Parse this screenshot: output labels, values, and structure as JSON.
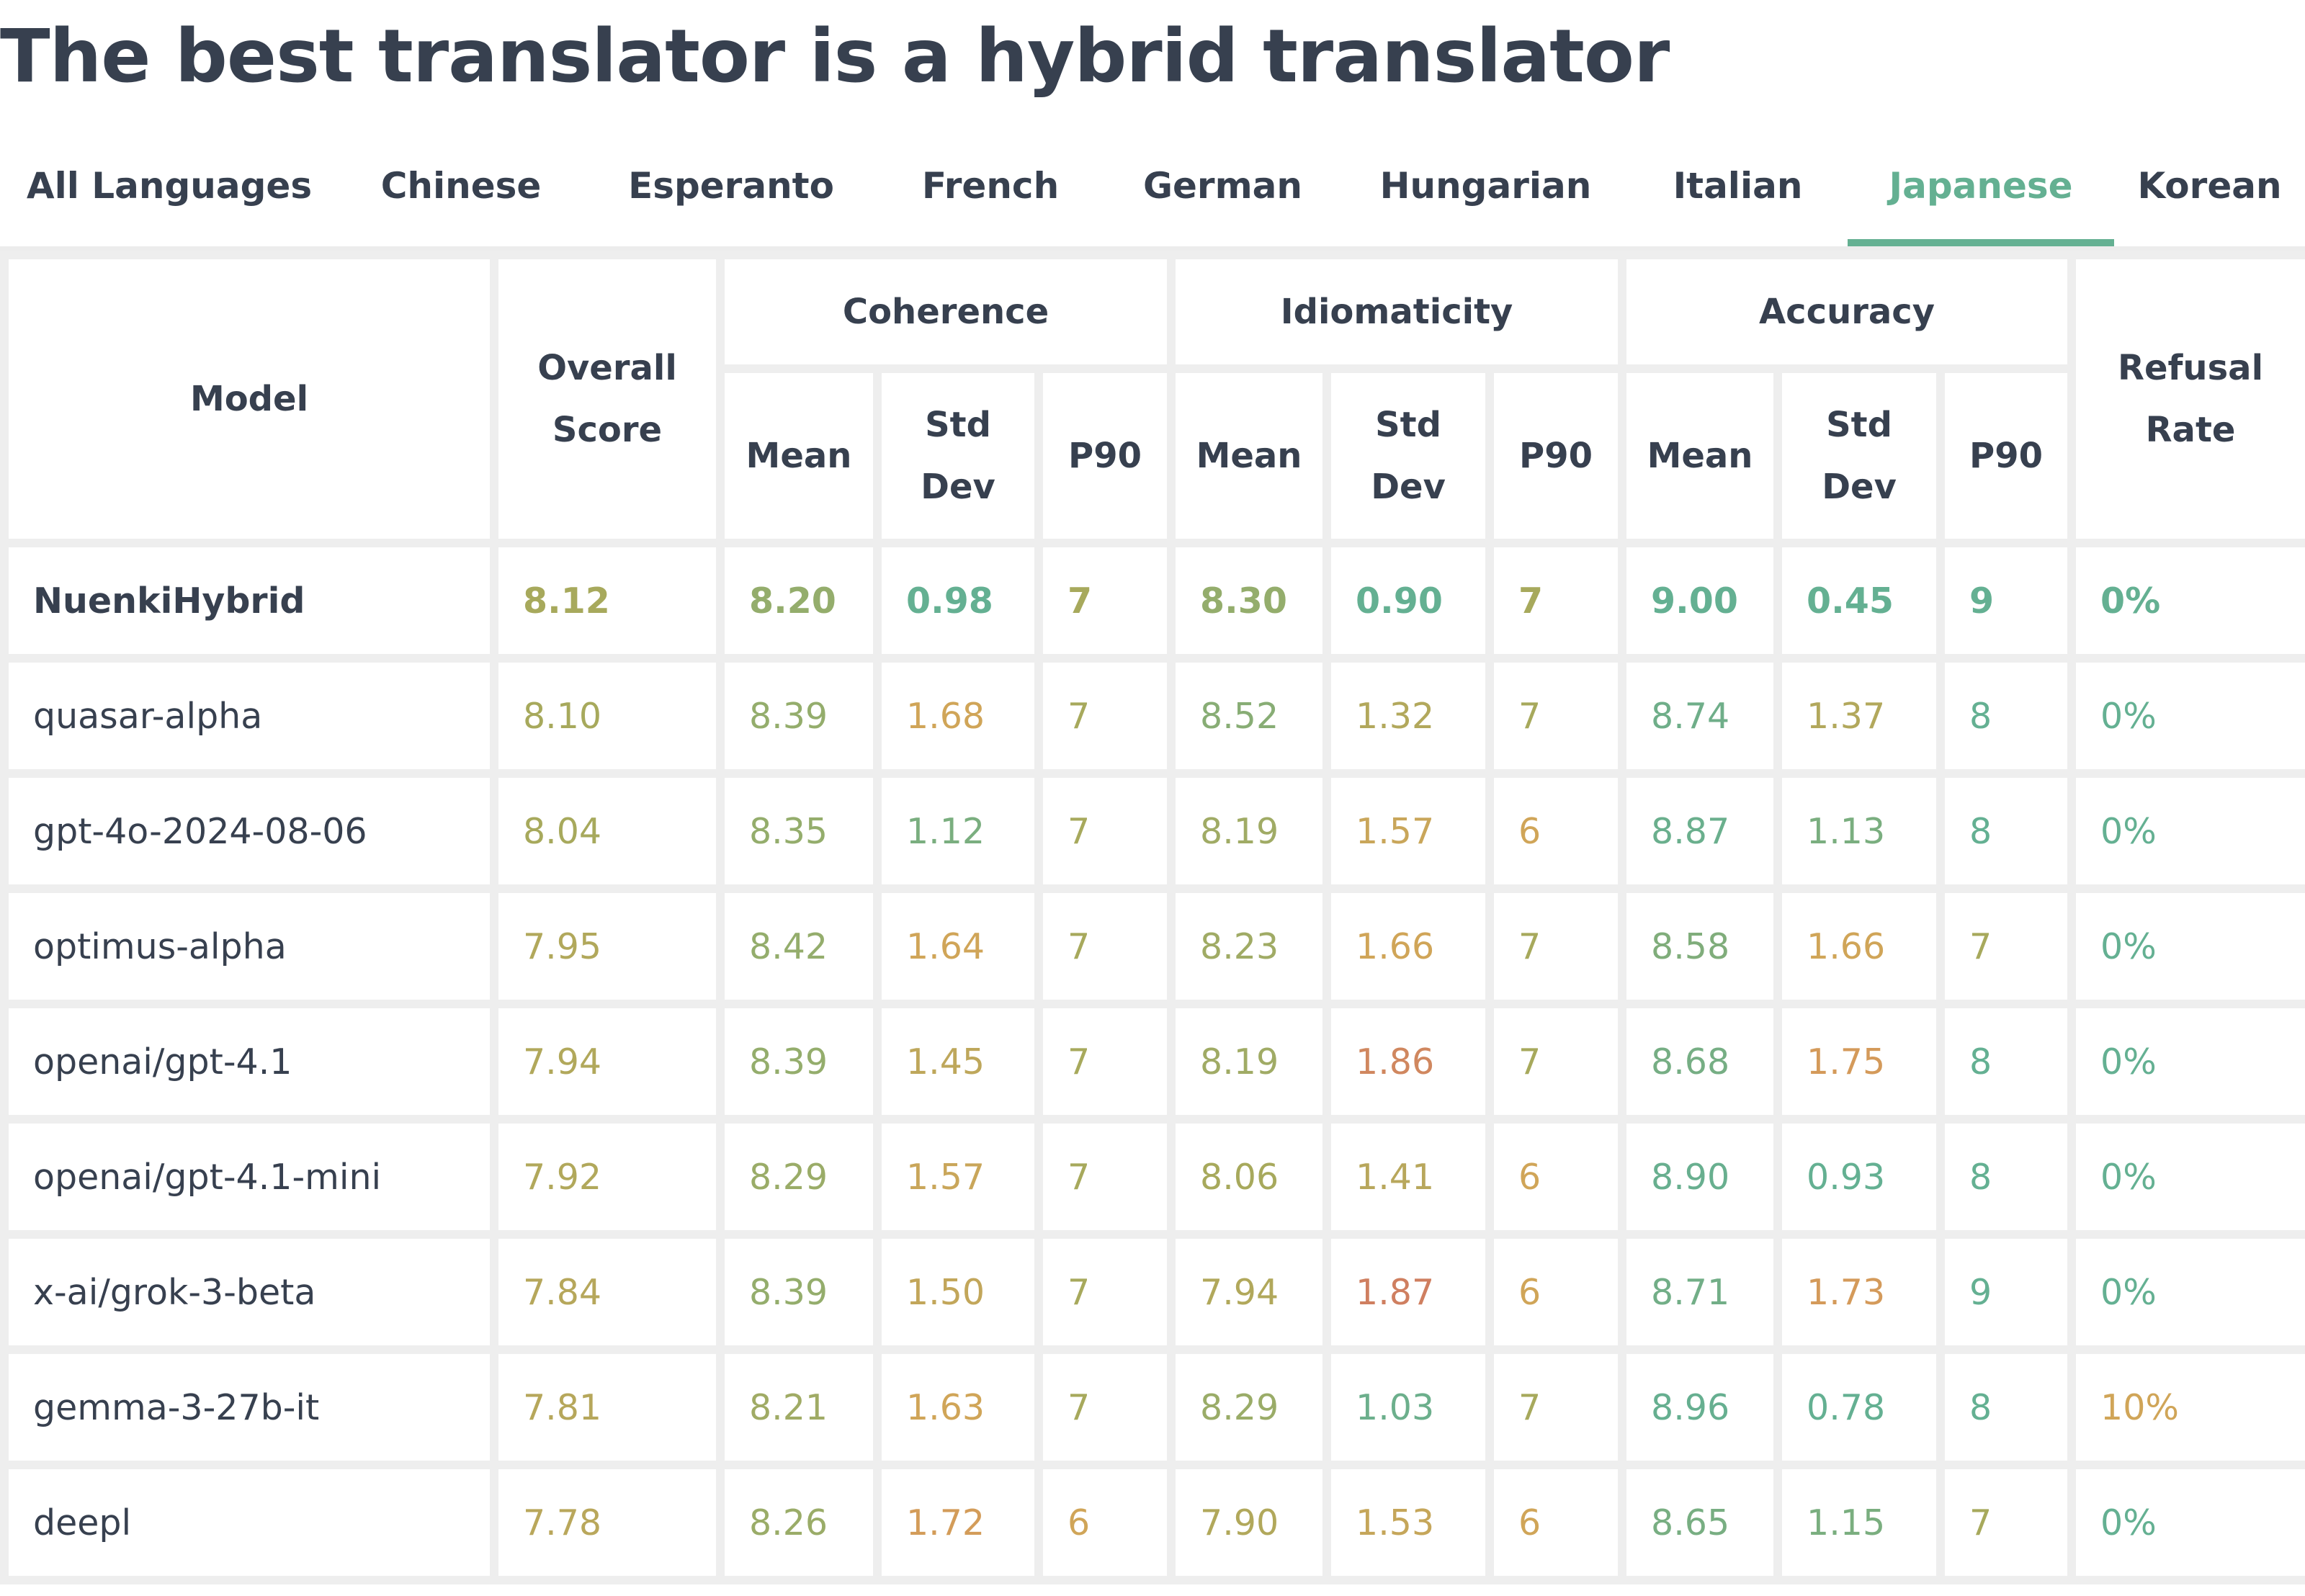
{
  "page": {
    "title": "The best translator is a hybrid translator"
  },
  "tabs": [
    {
      "label": "All Languages",
      "active": false
    },
    {
      "label": "Chinese",
      "active": false
    },
    {
      "label": "Esperanto",
      "active": false
    },
    {
      "label": "French",
      "active": false
    },
    {
      "label": "German",
      "active": false
    },
    {
      "label": "Hungarian",
      "active": false
    },
    {
      "label": "Italian",
      "active": false
    },
    {
      "label": "Japanese",
      "active": true
    },
    {
      "label": "Korean",
      "active": false
    }
  ],
  "table": {
    "headers": {
      "model": "Model",
      "overall": "Overall Score",
      "coherence": "Coherence",
      "idiomaticity": "Idiomaticity",
      "accuracy": "Accuracy",
      "refusal": "Refusal Rate",
      "mean": "Mean",
      "std": "Std Dev",
      "p90": "P90"
    },
    "rows": [
      {
        "model": "NuenkiHybrid",
        "highlight": true,
        "cells": [
          {
            "v": "8.12",
            "c": "#a7a95c"
          },
          {
            "v": "8.20",
            "c": "#94ad6c"
          },
          {
            "v": "0.98",
            "c": "#64b092"
          },
          {
            "v": "7",
            "c": "#a7a95c"
          },
          {
            "v": "8.30",
            "c": "#94ad6c"
          },
          {
            "v": "0.90",
            "c": "#64b092"
          },
          {
            "v": "7",
            "c": "#a7a95c"
          },
          {
            "v": "9.00",
            "c": "#64b092"
          },
          {
            "v": "0.45",
            "c": "#64b092"
          },
          {
            "v": "9",
            "c": "#64b092"
          },
          {
            "v": "0%",
            "c": "#64b092"
          }
        ]
      },
      {
        "model": "quasar-alpha",
        "highlight": false,
        "cells": [
          {
            "v": "8.10",
            "c": "#a7a95c"
          },
          {
            "v": "8.39",
            "c": "#94ad6c"
          },
          {
            "v": "1.68",
            "c": "#d0a558"
          },
          {
            "v": "7",
            "c": "#a7a95c"
          },
          {
            "v": "8.52",
            "c": "#88ad75"
          },
          {
            "v": "1.32",
            "c": "#b2a85c"
          },
          {
            "v": "7",
            "c": "#a7a95c"
          },
          {
            "v": "8.74",
            "c": "#6fae89"
          },
          {
            "v": "1.37",
            "c": "#b2a85c"
          },
          {
            "v": "8",
            "c": "#64b092"
          },
          {
            "v": "0%",
            "c": "#64b092"
          }
        ]
      },
      {
        "model": "gpt-4o-2024-08-06",
        "highlight": false,
        "cells": [
          {
            "v": "8.04",
            "c": "#a7a95c"
          },
          {
            "v": "8.35",
            "c": "#94ad6c"
          },
          {
            "v": "1.12",
            "c": "#7aae7f"
          },
          {
            "v": "7",
            "c": "#a7a95c"
          },
          {
            "v": "8.19",
            "c": "#a0ab65"
          },
          {
            "v": "1.57",
            "c": "#c9a65a"
          },
          {
            "v": "6",
            "c": "#d0a558"
          },
          {
            "v": "8.87",
            "c": "#6aaf8d"
          },
          {
            "v": "1.13",
            "c": "#7aae7f"
          },
          {
            "v": "8",
            "c": "#64b092"
          },
          {
            "v": "0%",
            "c": "#64b092"
          }
        ]
      },
      {
        "model": "optimus-alpha",
        "highlight": false,
        "cells": [
          {
            "v": "7.95",
            "c": "#b1a85b"
          },
          {
            "v": "8.42",
            "c": "#94ad6c"
          },
          {
            "v": "1.64",
            "c": "#d0a558"
          },
          {
            "v": "7",
            "c": "#a7a95c"
          },
          {
            "v": "8.23",
            "c": "#a0ab65"
          },
          {
            "v": "1.66",
            "c": "#d0a558"
          },
          {
            "v": "7",
            "c": "#a7a95c"
          },
          {
            "v": "8.58",
            "c": "#80ad7b"
          },
          {
            "v": "1.66",
            "c": "#d0a558"
          },
          {
            "v": "7",
            "c": "#a7a95c"
          },
          {
            "v": "0%",
            "c": "#64b092"
          }
        ]
      },
      {
        "model": "openai/gpt-4.1",
        "highlight": false,
        "cells": [
          {
            "v": "7.94",
            "c": "#b1a85b"
          },
          {
            "v": "8.39",
            "c": "#94ad6c"
          },
          {
            "v": "1.45",
            "c": "#bea75b"
          },
          {
            "v": "7",
            "c": "#a7a95c"
          },
          {
            "v": "8.19",
            "c": "#a0ab65"
          },
          {
            "v": "1.86",
            "c": "#d0875f"
          },
          {
            "v": "7",
            "c": "#a7a95c"
          },
          {
            "v": "8.68",
            "c": "#76ae84"
          },
          {
            "v": "1.75",
            "c": "#d49a5a"
          },
          {
            "v": "8",
            "c": "#64b092"
          },
          {
            "v": "0%",
            "c": "#64b092"
          }
        ]
      },
      {
        "model": "openai/gpt-4.1-mini",
        "highlight": false,
        "cells": [
          {
            "v": "7.92",
            "c": "#b1a85b"
          },
          {
            "v": "8.29",
            "c": "#9aac68"
          },
          {
            "v": "1.57",
            "c": "#c9a65a"
          },
          {
            "v": "7",
            "c": "#a7a95c"
          },
          {
            "v": "8.06",
            "c": "#a7a95c"
          },
          {
            "v": "1.41",
            "c": "#b8a75c"
          },
          {
            "v": "6",
            "c": "#d0a558"
          },
          {
            "v": "8.90",
            "c": "#68af8f"
          },
          {
            "v": "0.93",
            "c": "#64b092"
          },
          {
            "v": "8",
            "c": "#64b092"
          },
          {
            "v": "0%",
            "c": "#64b092"
          }
        ]
      },
      {
        "model": "x-ai/grok-3-beta",
        "highlight": false,
        "cells": [
          {
            "v": "7.84",
            "c": "#b6a75b"
          },
          {
            "v": "8.39",
            "c": "#94ad6c"
          },
          {
            "v": "1.50",
            "c": "#c2a65a"
          },
          {
            "v": "7",
            "c": "#a7a95c"
          },
          {
            "v": "7.94",
            "c": "#b1a85b"
          },
          {
            "v": "1.87",
            "c": "#cf7f60"
          },
          {
            "v": "6",
            "c": "#d0a558"
          },
          {
            "v": "8.71",
            "c": "#72ae87"
          },
          {
            "v": "1.73",
            "c": "#d49a5a"
          },
          {
            "v": "9",
            "c": "#64b092"
          },
          {
            "v": "0%",
            "c": "#64b092"
          }
        ]
      },
      {
        "model": "gemma-3-27b-it",
        "highlight": false,
        "cells": [
          {
            "v": "7.81",
            "c": "#b6a75b"
          },
          {
            "v": "8.21",
            "c": "#a0ab65"
          },
          {
            "v": "1.63",
            "c": "#d0a558"
          },
          {
            "v": "7",
            "c": "#a7a95c"
          },
          {
            "v": "8.29",
            "c": "#9aac68"
          },
          {
            "v": "1.03",
            "c": "#6caf8c"
          },
          {
            "v": "7",
            "c": "#a7a95c"
          },
          {
            "v": "8.96",
            "c": "#66af90"
          },
          {
            "v": "0.78",
            "c": "#64b092"
          },
          {
            "v": "8",
            "c": "#64b092"
          },
          {
            "v": "10%",
            "c": "#d0a558"
          }
        ]
      },
      {
        "model": "deepl",
        "highlight": false,
        "cells": [
          {
            "v": "7.78",
            "c": "#b9a75b"
          },
          {
            "v": "8.26",
            "c": "#9aac68"
          },
          {
            "v": "1.72",
            "c": "#d39c59"
          },
          {
            "v": "6",
            "c": "#d0a558"
          },
          {
            "v": "7.90",
            "c": "#b1a85b"
          },
          {
            "v": "1.53",
            "c": "#c5a65a"
          },
          {
            "v": "6",
            "c": "#d0a558"
          },
          {
            "v": "8.65",
            "c": "#78ae82"
          },
          {
            "v": "1.15",
            "c": "#7aae7f"
          },
          {
            "v": "7",
            "c": "#a7a95c"
          },
          {
            "v": "0%",
            "c": "#64b092"
          }
        ]
      }
    ]
  }
}
